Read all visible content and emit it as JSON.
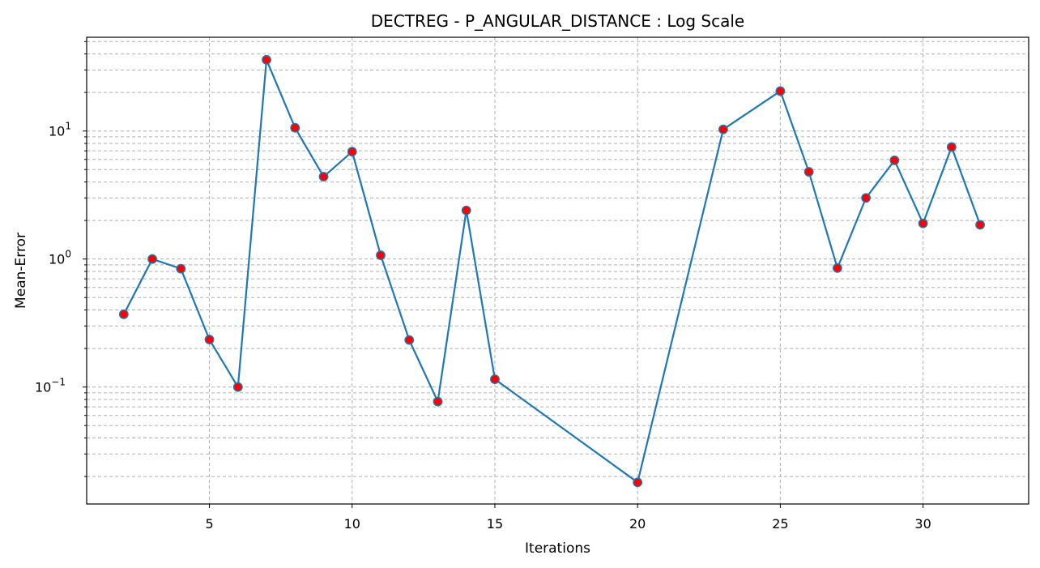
{
  "chart_data": {
    "type": "line",
    "title": "DECTREG - P_ANGULAR_DISTANCE : Log Scale",
    "xlabel": "Iterations",
    "ylabel": "Mean-Error",
    "yscale": "log",
    "xlim": [
      0.7,
      33.7
    ],
    "ylim": [
      0.0122,
      54
    ],
    "xticks": [
      5,
      10,
      15,
      20,
      25,
      30
    ],
    "xtick_labels": [
      "5",
      "10",
      "15",
      "20",
      "25",
      "30"
    ],
    "yticks": [
      0.1,
      1,
      10
    ],
    "ytick_bases": [
      "10",
      "10",
      "10"
    ],
    "ytick_exponents": [
      "−1",
      "0",
      "1"
    ],
    "grid": true,
    "line_color": "#1f77b4",
    "marker_color": "#ff0000",
    "marker_edge_color": "#1f77b4",
    "series": [
      {
        "x": [
          2,
          3,
          4,
          5,
          6,
          7,
          8,
          9,
          10,
          11,
          12,
          13,
          14,
          15,
          20,
          23,
          25,
          26,
          27,
          28,
          29,
          30,
          31,
          32
        ],
        "values": [
          0.37,
          1.0,
          0.84,
          0.235,
          0.1,
          36,
          10.6,
          4.4,
          6.9,
          1.07,
          0.233,
          0.077,
          2.4,
          0.115,
          0.018,
          10.3,
          20.5,
          4.8,
          0.85,
          3.0,
          5.9,
          1.9,
          7.5,
          1.85
        ]
      }
    ]
  }
}
